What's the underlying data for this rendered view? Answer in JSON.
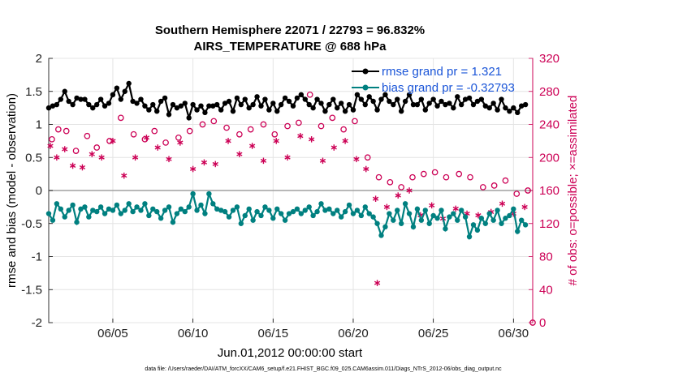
{
  "chart_data": {
    "type": "line",
    "title": "Southern Hemisphere 22071 / 22793 = 96.832%",
    "subtitle": "AIRS_TEMPERATURE @ 688 hPa",
    "xlabel": "Jun.01,2012 00:00:00 start",
    "ylabel_left": "rmse and bias (model - observation)",
    "ylabel_right": "# of obs: o=possible; ×=assimilated",
    "footer": "data file: /Users/raeder/DAI/ATM_forcXX/CAM6_setup/f.e21.FHIST_BGC.f09_025.CAM6assim.011/Diags_NTrS_2012-06/obs_diag_output.nc",
    "xlim": [
      1,
      31.2
    ],
    "ylim_left": [
      -2,
      2
    ],
    "ylim_right": [
      0,
      320
    ],
    "x_ticks": [
      5,
      10,
      15,
      20,
      25,
      30
    ],
    "x_tick_labels": [
      "06/05",
      "06/10",
      "06/15",
      "06/20",
      "06/25",
      "06/30"
    ],
    "y_left_ticks": [
      -2,
      -1.5,
      -1,
      -0.5,
      0,
      0.5,
      1,
      1.5,
      2
    ],
    "y_left_tick_labels": [
      "-2",
      "-1.5",
      "-1",
      "-0.5",
      "0",
      "0.5",
      "1",
      "1.5",
      "2"
    ],
    "y_right_ticks": [
      0,
      40,
      80,
      120,
      160,
      200,
      240,
      280,
      320
    ],
    "y_right_tick_labels": [
      "0",
      "40",
      "80",
      "120",
      "160",
      "200",
      "240",
      "280",
      "320"
    ],
    "grid": true,
    "legend_position": "top-right",
    "colors": {
      "rmse": "#000000",
      "bias": "#008080",
      "obs": "#cc0055",
      "legend_text": "#1a55d8",
      "zero_line": "#a0a0a0"
    },
    "series": [
      {
        "name": "rmse grand pr = 1.321",
        "axis": "left",
        "x": [
          1.0,
          1.25,
          1.5,
          1.75,
          2.0,
          2.25,
          2.5,
          2.75,
          3.0,
          3.25,
          3.5,
          3.75,
          4.0,
          4.25,
          4.5,
          4.75,
          5.0,
          5.25,
          5.5,
          5.75,
          6.0,
          6.25,
          6.5,
          6.75,
          7.0,
          7.25,
          7.5,
          7.75,
          8.0,
          8.25,
          8.5,
          8.75,
          9.0,
          9.25,
          9.5,
          9.75,
          10.0,
          10.25,
          10.5,
          10.75,
          11.0,
          11.25,
          11.5,
          11.75,
          12.0,
          12.25,
          12.5,
          12.75,
          13.0,
          13.25,
          13.5,
          13.75,
          14.0,
          14.25,
          14.5,
          14.75,
          15.0,
          15.25,
          15.5,
          15.75,
          16.0,
          16.25,
          16.5,
          16.75,
          17.0,
          17.25,
          17.5,
          17.75,
          18.0,
          18.25,
          18.5,
          18.75,
          19.0,
          19.25,
          19.5,
          19.75,
          20.0,
          20.25,
          20.5,
          20.75,
          21.0,
          21.25,
          21.5,
          21.75,
          22.0,
          22.25,
          22.5,
          22.75,
          23.0,
          23.25,
          23.5,
          23.75,
          24.0,
          24.25,
          24.5,
          24.75,
          25.0,
          25.25,
          25.5,
          25.75,
          26.0,
          26.25,
          26.5,
          26.75,
          27.0,
          27.25,
          27.5,
          27.75,
          28.0,
          28.25,
          28.5,
          28.75,
          29.0,
          29.25,
          29.5,
          29.75,
          30.0,
          30.25,
          30.5,
          30.75
        ],
        "values": [
          1.25,
          1.28,
          1.3,
          1.38,
          1.5,
          1.35,
          1.3,
          1.4,
          1.38,
          1.38,
          1.3,
          1.25,
          1.3,
          1.38,
          1.28,
          1.32,
          1.45,
          1.55,
          1.38,
          1.5,
          1.62,
          1.35,
          1.32,
          1.38,
          1.28,
          1.22,
          1.3,
          1.2,
          1.35,
          1.4,
          1.15,
          1.3,
          1.25,
          1.28,
          1.32,
          1.1,
          1.3,
          1.22,
          1.28,
          1.18,
          1.28,
          1.28,
          1.3,
          1.22,
          1.32,
          1.35,
          1.2,
          1.4,
          1.3,
          1.38,
          1.25,
          1.3,
          1.42,
          1.28,
          1.38,
          1.22,
          1.32,
          1.2,
          1.3,
          1.4,
          1.35,
          1.28,
          1.4,
          1.45,
          1.38,
          1.3,
          1.25,
          1.38,
          1.32,
          1.2,
          1.3,
          1.38,
          1.25,
          1.32,
          1.2,
          1.3,
          1.22,
          1.45,
          1.38,
          1.3,
          1.42,
          1.35,
          1.22,
          1.38,
          1.45,
          1.35,
          1.3,
          1.38,
          1.2,
          1.35,
          1.45,
          1.3,
          1.3,
          1.38,
          1.22,
          1.32,
          1.38,
          1.28,
          1.35,
          1.3,
          1.32,
          1.25,
          1.42,
          1.3,
          1.38,
          1.4,
          1.3,
          1.35,
          1.38,
          1.28,
          1.25,
          1.32,
          1.22,
          1.38,
          1.25,
          1.2,
          1.25,
          1.18,
          1.28,
          1.3
        ]
      },
      {
        "name": "bias grand pr = -0.32793",
        "axis": "left",
        "x": [
          1.0,
          1.25,
          1.5,
          1.75,
          2.0,
          2.25,
          2.5,
          2.75,
          3.0,
          3.25,
          3.5,
          3.75,
          4.0,
          4.25,
          4.5,
          4.75,
          5.0,
          5.25,
          5.5,
          5.75,
          6.0,
          6.25,
          6.5,
          6.75,
          7.0,
          7.25,
          7.5,
          7.75,
          8.0,
          8.25,
          8.5,
          8.75,
          9.0,
          9.25,
          9.5,
          9.75,
          10.0,
          10.25,
          10.5,
          10.75,
          11.0,
          11.25,
          11.5,
          11.75,
          12.0,
          12.25,
          12.5,
          12.75,
          13.0,
          13.25,
          13.5,
          13.75,
          14.0,
          14.25,
          14.5,
          14.75,
          15.0,
          15.25,
          15.5,
          15.75,
          16.0,
          16.25,
          16.5,
          16.75,
          17.0,
          17.25,
          17.5,
          17.75,
          18.0,
          18.25,
          18.5,
          18.75,
          19.0,
          19.25,
          19.5,
          19.75,
          20.0,
          20.25,
          20.5,
          20.75,
          21.0,
          21.25,
          21.5,
          21.75,
          22.0,
          22.25,
          22.5,
          22.75,
          23.0,
          23.25,
          23.5,
          23.75,
          24.0,
          24.25,
          24.5,
          24.75,
          25.0,
          25.25,
          25.5,
          25.75,
          26.0,
          26.25,
          26.5,
          26.75,
          27.0,
          27.25,
          27.5,
          27.75,
          28.0,
          28.25,
          28.5,
          28.75,
          29.0,
          29.25,
          29.5,
          29.75,
          30.0,
          30.25,
          30.5,
          30.75
        ],
        "values": [
          -0.35,
          -0.45,
          -0.2,
          -0.28,
          -0.4,
          -0.3,
          -0.22,
          -0.48,
          -0.28,
          -0.25,
          -0.4,
          -0.3,
          -0.32,
          -0.25,
          -0.35,
          -0.28,
          -0.3,
          -0.22,
          -0.35,
          -0.3,
          -0.2,
          -0.32,
          -0.25,
          -0.3,
          -0.2,
          -0.38,
          -0.28,
          -0.32,
          -0.42,
          -0.3,
          -0.25,
          -0.48,
          -0.35,
          -0.28,
          -0.32,
          -0.25,
          -0.05,
          -0.3,
          -0.22,
          -0.35,
          -0.05,
          -0.2,
          -0.28,
          -0.3,
          -0.32,
          -0.4,
          -0.3,
          -0.25,
          -0.5,
          -0.38,
          -0.28,
          -0.45,
          -0.32,
          -0.38,
          -0.25,
          -0.3,
          -0.42,
          -0.28,
          -0.35,
          -0.45,
          -0.35,
          -0.32,
          -0.28,
          -0.35,
          -0.3,
          -0.25,
          -0.38,
          -0.32,
          -0.2,
          -0.3,
          -0.28,
          -0.35,
          -0.3,
          -0.4,
          -0.32,
          -0.22,
          -0.35,
          -0.3,
          -0.38,
          -0.25,
          -0.35,
          -0.4,
          -0.5,
          -0.68,
          -0.55,
          -0.35,
          -0.45,
          -0.3,
          -0.5,
          -0.2,
          -0.35,
          -0.55,
          -0.28,
          -0.45,
          -0.3,
          -0.5,
          -0.38,
          -0.42,
          -0.3,
          -0.58,
          -0.4,
          -0.35,
          -0.45,
          -0.3,
          -0.4,
          -0.7,
          -0.52,
          -0.6,
          -0.42,
          -0.5,
          -0.35,
          -0.45,
          -0.3,
          -0.5,
          -0.42,
          -0.38,
          -0.28,
          -0.62,
          -0.45,
          -0.52
        ]
      },
      {
        "name": "possible",
        "axis": "right",
        "marker": "o",
        "x": [
          1.2,
          1.6,
          2.1,
          2.7,
          3.4,
          4.0,
          4.8,
          5.5,
          6.3,
          7.0,
          7.6,
          8.3,
          9.1,
          9.8,
          10.6,
          11.3,
          12.1,
          12.9,
          13.6,
          14.4,
          15.1,
          15.9,
          16.6,
          17.3,
          18.0,
          18.7,
          19.4,
          20.1,
          20.9,
          21.6,
          22.3,
          23.0,
          23.7,
          24.4,
          25.1,
          25.8,
          26.6,
          27.3,
          28.1,
          28.8,
          29.5,
          30.2,
          30.9
        ],
        "values": [
          222,
          234,
          232,
          208,
          226,
          212,
          220,
          248,
          228,
          222,
          232,
          218,
          224,
          232,
          240,
          244,
          236,
          228,
          234,
          240,
          228,
          238,
          242,
          276,
          238,
          248,
          234,
          244,
          200,
          176,
          170,
          164,
          176,
          180,
          182,
          176,
          180,
          176,
          164,
          166,
          172,
          156,
          160
        ]
      },
      {
        "name": "assimilated",
        "axis": "right",
        "marker": "*",
        "x": [
          1.1,
          1.5,
          2.0,
          2.5,
          3.1,
          3.7,
          4.3,
          5.0,
          5.7,
          6.4,
          7.1,
          7.8,
          8.5,
          9.2,
          10.0,
          10.7,
          11.4,
          12.2,
          12.9,
          13.7,
          14.4,
          15.2,
          15.9,
          16.7,
          17.4,
          18.1,
          18.8,
          19.5,
          20.2,
          20.8,
          21.4,
          22.1,
          22.8,
          23.5,
          24.2,
          24.9,
          25.6,
          26.4,
          27.1,
          27.8,
          28.6,
          29.3,
          30.0,
          30.7
        ],
        "values": [
          214,
          200,
          210,
          190,
          188,
          204,
          200,
          220,
          178,
          200,
          224,
          212,
          198,
          218,
          186,
          194,
          192,
          220,
          204,
          214,
          196,
          220,
          200,
          226,
          222,
          196,
          212,
          220,
          198,
          186,
          150,
          140,
          154,
          160,
          130,
          142,
          126,
          138,
          132,
          130,
          134,
          144,
          132,
          140
        ]
      }
    ],
    "outliers": [
      {
        "series": "assimilated",
        "x": 21.5,
        "y": 48
      },
      {
        "series": "possible",
        "x": 31.2,
        "y": 0
      }
    ]
  }
}
